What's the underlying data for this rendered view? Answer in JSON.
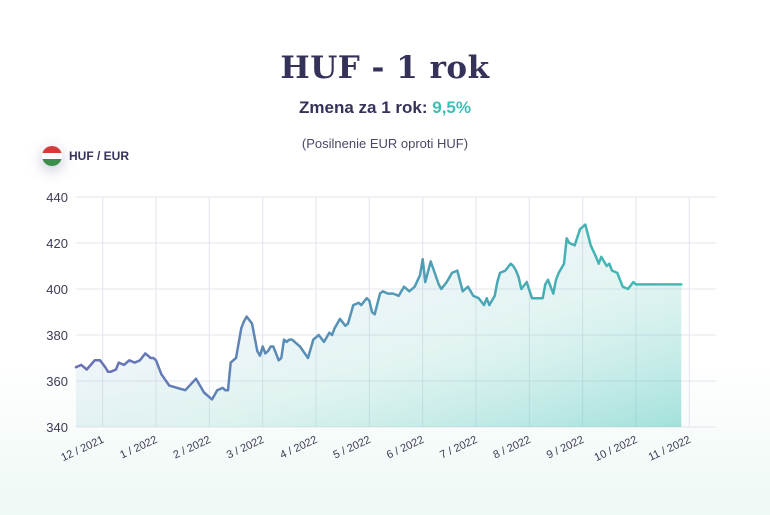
{
  "header": {
    "title": "HUF - 1 rok",
    "subtitle_label": "Zmena za 1 rok:",
    "subtitle_value": "9,5%",
    "note": "(Posilnenie EUR oproti HUF)"
  },
  "pair": {
    "label": "HUF / EUR",
    "flag_colors": [
      "#d63a3a",
      "#ffffff",
      "#3c8f4b"
    ]
  },
  "colors": {
    "line_start": "#6a6fb7",
    "line_end": "#3cc0b4",
    "grid": "#e3e4ee",
    "title": "#35325a",
    "accent": "#3cc0b4"
  },
  "chart_data": {
    "type": "line",
    "title": "HUF - 1 rok",
    "ylim": [
      340,
      440
    ],
    "yticks": [
      340,
      360,
      380,
      400,
      420,
      440
    ],
    "xlim": [
      0,
      12
    ],
    "grid": true,
    "xtick_labels": [
      "12 / 2021",
      "1 / 2022",
      "2 / 2022",
      "3 / 2022",
      "4 / 2022",
      "5 / 2022",
      "6 / 2022",
      "7 / 2022",
      "8 / 2022",
      "9 / 2022",
      "10 / 2022",
      "11 / 2022"
    ],
    "xtick_positions": [
      0.5,
      1.5,
      2.5,
      3.5,
      4.5,
      5.5,
      6.5,
      7.5,
      8.5,
      9.5,
      10.5,
      11.5
    ],
    "series": [
      {
        "x": [
          0,
          0.1,
          0.2,
          0.35,
          0.4,
          0.45,
          0.55,
          0.6,
          0.65,
          0.75,
          0.8,
          0.9,
          1.0,
          1.1,
          1.2,
          1.3,
          1.35,
          1.4,
          1.45,
          1.5,
          1.6,
          1.75,
          1.9,
          2.05,
          2.25,
          2.4,
          2.55,
          2.6,
          2.65,
          2.75,
          2.8,
          2.85,
          2.9,
          3.0,
          3.1,
          3.15,
          3.2,
          3.3,
          3.4,
          3.45,
          3.5,
          3.55,
          3.6,
          3.65,
          3.7,
          3.8,
          3.85,
          3.9,
          3.95,
          4.0,
          4.05,
          4.1,
          4.15,
          4.2,
          4.35,
          4.45,
          4.55,
          4.65,
          4.75,
          4.8,
          4.85,
          4.9,
          4.95,
          5.05,
          5.1,
          5.2,
          5.3,
          5.35,
          5.45,
          5.5,
          5.55,
          5.6,
          5.7,
          5.75,
          5.85,
          5.95,
          6.05,
          6.15,
          6.2,
          6.25,
          6.35,
          6.45,
          6.5,
          6.55,
          6.65,
          6.8,
          6.85,
          6.95,
          7.05,
          7.15,
          7.25,
          7.35,
          7.45,
          7.55,
          7.65,
          7.7,
          7.75,
          7.85,
          7.9,
          7.95,
          8.05,
          8.15,
          8.2,
          8.25,
          8.3,
          8.35,
          8.45,
          8.55,
          8.65,
          8.75,
          8.8,
          8.85,
          8.95,
          9.0,
          9.05,
          9.15,
          9.2,
          9.25,
          9.35,
          9.45,
          9.55,
          9.65,
          9.75,
          9.8,
          9.85,
          9.95,
          10.0,
          10.05,
          10.15,
          10.25,
          10.35,
          10.45,
          10.5,
          10.55,
          10.65,
          10.75,
          10.8,
          10.85,
          10.95,
          11.05,
          11.1,
          11.15,
          11.25,
          11.35
        ],
        "values": [
          366,
          367,
          365,
          369,
          369,
          369,
          366,
          364,
          364,
          365,
          368,
          367,
          369,
          368,
          369,
          372,
          371,
          370,
          370,
          369,
          363,
          358,
          357,
          356,
          361,
          355,
          352,
          354,
          356,
          357,
          356,
          356,
          368,
          370,
          383,
          386,
          388,
          385,
          373,
          371,
          375,
          372,
          373,
          375,
          375,
          369,
          370,
          378,
          377,
          378,
          378,
          377,
          376,
          375,
          370,
          378,
          380,
          377,
          381,
          380,
          383,
          385,
          387,
          384,
          385,
          393,
          394,
          393,
          396,
          395,
          390,
          389,
          398,
          399,
          398,
          398,
          397,
          401,
          400,
          399,
          401,
          406,
          413,
          403,
          412,
          402,
          400,
          403,
          407,
          408,
          399,
          401,
          397,
          396,
          393,
          396,
          393,
          397,
          403,
          407,
          408,
          411,
          410,
          408,
          405,
          400,
          403,
          396,
          396,
          396,
          402,
          404,
          398,
          404,
          407,
          411,
          422,
          420,
          419,
          426,
          428,
          419,
          414,
          411,
          414,
          410,
          411,
          408,
          407,
          401,
          400,
          403,
          402,
          402,
          402,
          402,
          402,
          402,
          402,
          402,
          402,
          402,
          402,
          402
        ]
      }
    ]
  }
}
